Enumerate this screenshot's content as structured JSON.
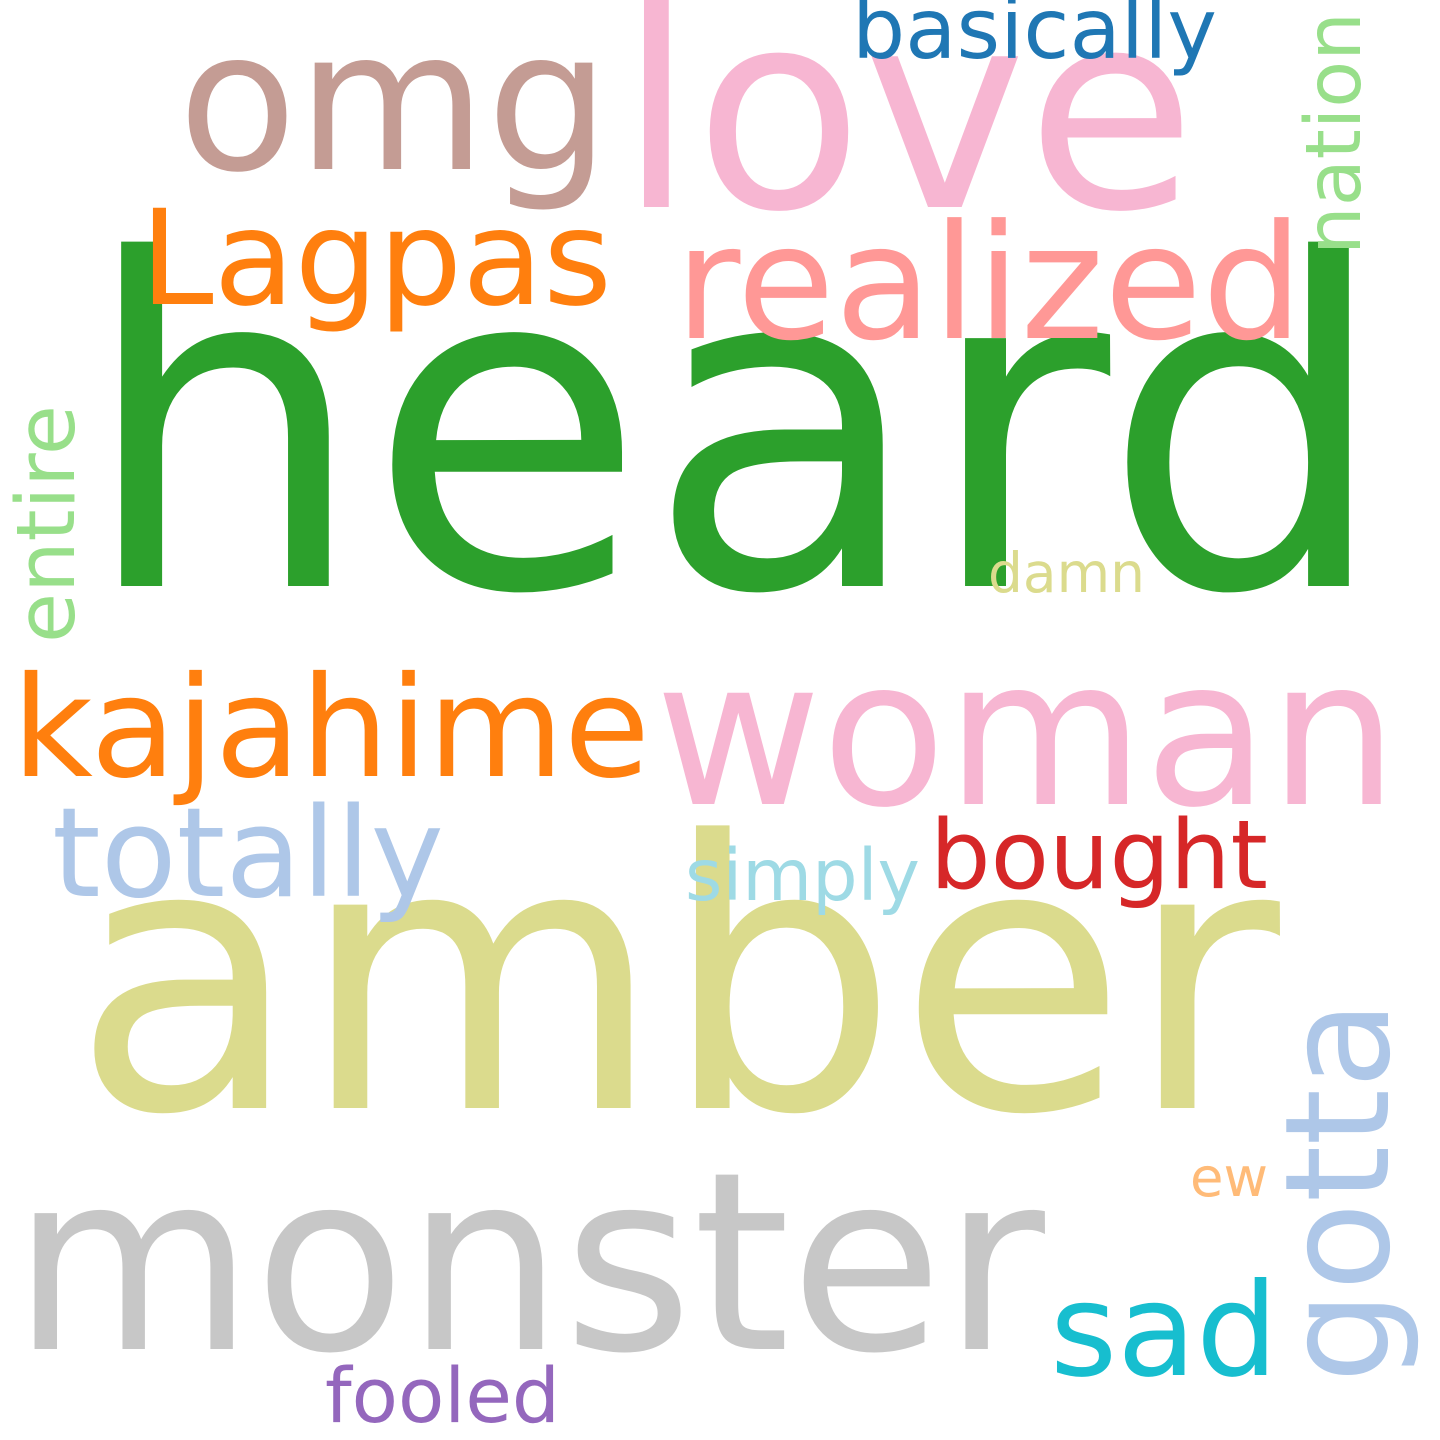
{
  "words": [
    {
      "id": "heard",
      "text": "heard",
      "color": "#2ca02c",
      "rotated": false
    },
    {
      "id": "amber",
      "text": "amber",
      "color": "#dbdb8d",
      "rotated": false
    },
    {
      "id": "woman",
      "text": "woman",
      "color": "#f7b6d2",
      "rotated": false
    },
    {
      "id": "love",
      "text": "love",
      "color": "#f7b6d2",
      "rotated": false
    },
    {
      "id": "omg",
      "text": "omg",
      "color": "#c49c94",
      "rotated": false
    },
    {
      "id": "monster",
      "text": "monster",
      "color": "#c7c7c7",
      "rotated": false
    },
    {
      "id": "Lagpas",
      "text": "Lagpas",
      "color": "#ff7f0e",
      "rotated": false
    },
    {
      "id": "realized",
      "text": "realized",
      "color": "#ff9896",
      "rotated": false
    },
    {
      "id": "kajahime",
      "text": "kajahime",
      "color": "#ff7f0e",
      "rotated": false
    },
    {
      "id": "totally",
      "text": "totally",
      "color": "#aec7e8",
      "rotated": false
    },
    {
      "id": "bought",
      "text": "bought",
      "color": "#d62728",
      "rotated": false
    },
    {
      "id": "sad",
      "text": "sad",
      "color": "#17becf",
      "rotated": false
    },
    {
      "id": "gotta",
      "text": "gotta",
      "color": "#aec7e8",
      "rotated": true
    },
    {
      "id": "basically",
      "text": "basically",
      "color": "#1f77b4",
      "rotated": false
    },
    {
      "id": "nation",
      "text": "nation",
      "color": "#98df8a",
      "rotated": true
    },
    {
      "id": "entire",
      "text": "entire",
      "color": "#98df8a",
      "rotated": true
    },
    {
      "id": "damn",
      "text": "damn",
      "color": "#dbdb8d",
      "rotated": false
    },
    {
      "id": "simply",
      "text": "simply",
      "color": "#9edae5",
      "rotated": false
    },
    {
      "id": "ew",
      "text": "ew",
      "color": "#ffbb78",
      "rotated": false
    },
    {
      "id": "fooled",
      "text": "fooled",
      "color": "#9467bd",
      "rotated": false
    }
  ]
}
